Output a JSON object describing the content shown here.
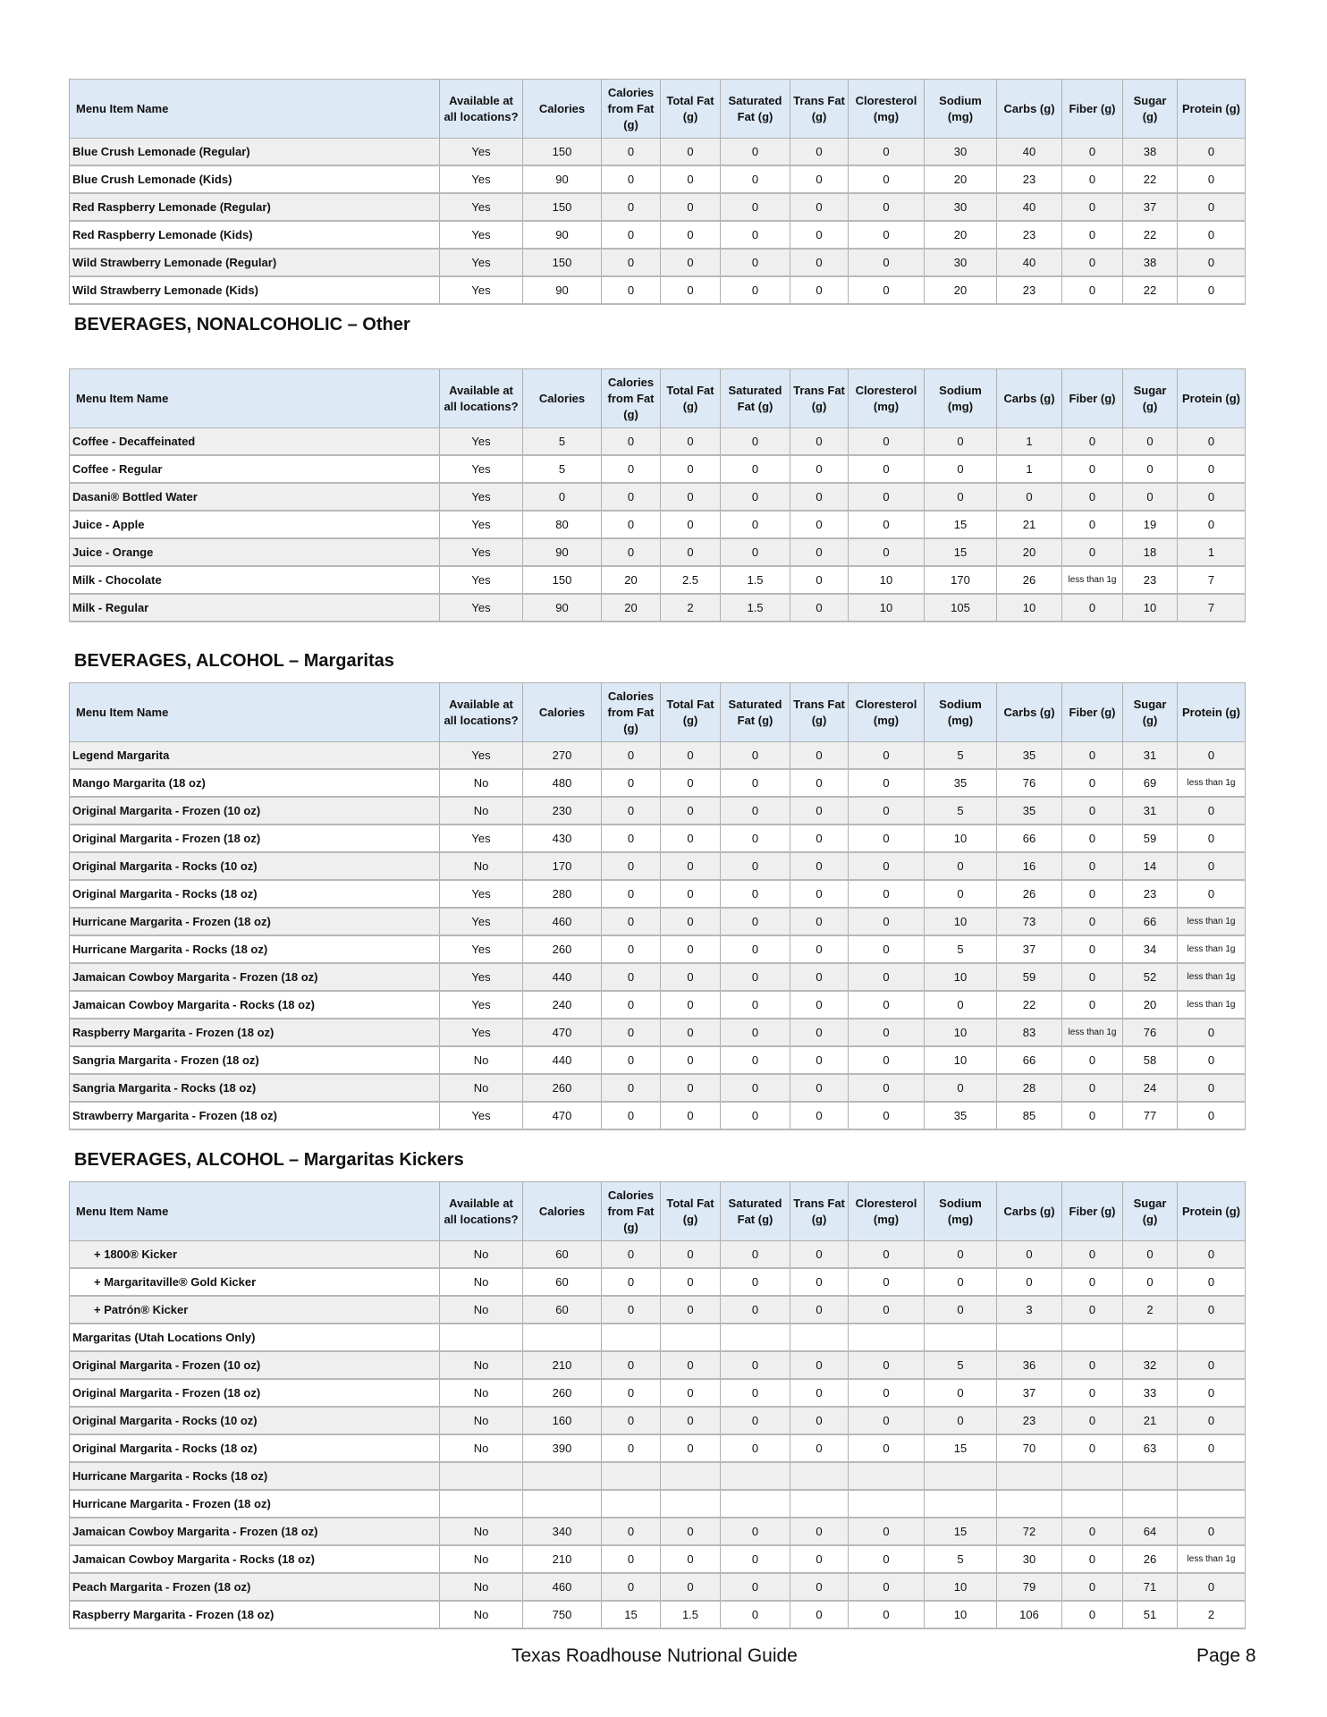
{
  "columns": [
    "Menu Item Name",
    "Available at all locations?",
    "Calories",
    "Calories from Fat (g)",
    "Total Fat (g)",
    "Saturated Fat (g)",
    "Trans Fat (g)",
    "Cloresterol (mg)",
    "Sodium (mg)",
    "Carbs (g)",
    "Fiber (g)",
    "Sugar (g)",
    "Protein (g)"
  ],
  "sections": [
    {
      "title": "",
      "rows": [
        [
          "Blue Crush Lemonade (Regular)",
          "Yes",
          "150",
          "0",
          "0",
          "0",
          "0",
          "0",
          "30",
          "40",
          "0",
          "38",
          "0"
        ],
        [
          "Blue Crush Lemonade (Kids)",
          "Yes",
          "90",
          "0",
          "0",
          "0",
          "0",
          "0",
          "20",
          "23",
          "0",
          "22",
          "0"
        ],
        [
          "Red Raspberry Lemonade (Regular)",
          "Yes",
          "150",
          "0",
          "0",
          "0",
          "0",
          "0",
          "30",
          "40",
          "0",
          "37",
          "0"
        ],
        [
          "Red Raspberry Lemonade (Kids)",
          "Yes",
          "90",
          "0",
          "0",
          "0",
          "0",
          "0",
          "20",
          "23",
          "0",
          "22",
          "0"
        ],
        [
          "Wild Strawberry Lemonade  (Regular)",
          "Yes",
          "150",
          "0",
          "0",
          "0",
          "0",
          "0",
          "30",
          "40",
          "0",
          "38",
          "0"
        ],
        [
          "Wild Strawberry Lemonade (Kids)",
          "Yes",
          "90",
          "0",
          "0",
          "0",
          "0",
          "0",
          "20",
          "23",
          "0",
          "22",
          "0"
        ]
      ]
    },
    {
      "title": "BEVERAGES, NONALCOHOLIC – Other",
      "rows": [
        [
          "Coffee - Decaffeinated",
          "Yes",
          "5",
          "0",
          "0",
          "0",
          "0",
          "0",
          "0",
          "1",
          "0",
          "0",
          "0"
        ],
        [
          "Coffee - Regular",
          "Yes",
          "5",
          "0",
          "0",
          "0",
          "0",
          "0",
          "0",
          "1",
          "0",
          "0",
          "0"
        ],
        [
          "Dasani® Bottled Water",
          "Yes",
          "0",
          "0",
          "0",
          "0",
          "0",
          "0",
          "0",
          "0",
          "0",
          "0",
          "0"
        ],
        [
          "Juice - Apple",
          "Yes",
          "80",
          "0",
          "0",
          "0",
          "0",
          "0",
          "15",
          "21",
          "0",
          "19",
          "0"
        ],
        [
          "Juice - Orange",
          "Yes",
          "90",
          "0",
          "0",
          "0",
          "0",
          "0",
          "15",
          "20",
          "0",
          "18",
          "1"
        ],
        [
          "Milk - Chocolate",
          "Yes",
          "150",
          "20",
          "2.5",
          "1.5",
          "0",
          "10",
          "170",
          "26",
          "less than 1g",
          "23",
          "7"
        ],
        [
          "Milk - Regular",
          "Yes",
          "90",
          "20",
          "2",
          "1.5",
          "0",
          "10",
          "105",
          "10",
          "0",
          "10",
          "7"
        ]
      ]
    },
    {
      "title": "BEVERAGES, ALCOHOL – Margaritas",
      "rows": [
        [
          "Legend Margarita",
          "Yes",
          "270",
          "0",
          "0",
          "0",
          "0",
          "0",
          "5",
          "35",
          "0",
          "31",
          "0"
        ],
        [
          "Mango Margarita (18 oz)",
          "No",
          "480",
          "0",
          "0",
          "0",
          "0",
          "0",
          "35",
          "76",
          "0",
          "69",
          "less than 1g"
        ],
        [
          "Original Margarita - Frozen (10 oz)",
          "No",
          "230",
          "0",
          "0",
          "0",
          "0",
          "0",
          "5",
          "35",
          "0",
          "31",
          "0"
        ],
        [
          "Original Margarita - Frozen (18 oz)",
          "Yes",
          "430",
          "0",
          "0",
          "0",
          "0",
          "0",
          "10",
          "66",
          "0",
          "59",
          "0"
        ],
        [
          "Original Margarita - Rocks (10 oz)",
          "No",
          "170",
          "0",
          "0",
          "0",
          "0",
          "0",
          "0",
          "16",
          "0",
          "14",
          "0"
        ],
        [
          "Original Margarita - Rocks (18 oz)",
          "Yes",
          "280",
          "0",
          "0",
          "0",
          "0",
          "0",
          "0",
          "26",
          "0",
          "23",
          "0"
        ],
        [
          "Hurricane Margarita - Frozen (18 oz)",
          "Yes",
          "460",
          "0",
          "0",
          "0",
          "0",
          "0",
          "10",
          "73",
          "0",
          "66",
          "less than 1g"
        ],
        [
          "Hurricane Margarita - Rocks (18 oz)",
          "Yes",
          "260",
          "0",
          "0",
          "0",
          "0",
          "0",
          "5",
          "37",
          "0",
          "34",
          "less than 1g"
        ],
        [
          "Jamaican Cowboy Margarita - Frozen (18 oz)",
          "Yes",
          "440",
          "0",
          "0",
          "0",
          "0",
          "0",
          "10",
          "59",
          "0",
          "52",
          "less than 1g"
        ],
        [
          "Jamaican Cowboy Margarita - Rocks (18 oz)",
          "Yes",
          "240",
          "0",
          "0",
          "0",
          "0",
          "0",
          "0",
          "22",
          "0",
          "20",
          "less than 1g"
        ],
        [
          "Raspberry Margarita - Frozen (18 oz)",
          "Yes",
          "470",
          "0",
          "0",
          "0",
          "0",
          "0",
          "10",
          "83",
          "less than 1g",
          "76",
          "0"
        ],
        [
          "Sangria Margarita - Frozen (18 oz)",
          "No",
          "440",
          "0",
          "0",
          "0",
          "0",
          "0",
          "10",
          "66",
          "0",
          "58",
          "0"
        ],
        [
          "Sangria Margarita - Rocks (18 oz)",
          "No",
          "260",
          "0",
          "0",
          "0",
          "0",
          "0",
          "0",
          "28",
          "0",
          "24",
          "0"
        ],
        [
          "Strawberry Margarita - Frozen (18 oz)",
          "Yes",
          "470",
          "0",
          "0",
          "0",
          "0",
          "0",
          "35",
          "85",
          "0",
          "77",
          "0"
        ]
      ]
    },
    {
      "title": "BEVERAGES, ALCOHOL – Margaritas Kickers",
      "rows": [
        [
          "+ 1800® Kicker",
          "No",
          "60",
          "0",
          "0",
          "0",
          "0",
          "0",
          "0",
          "0",
          "0",
          "0",
          "0"
        ],
        [
          "+ Margaritaville® Gold Kicker",
          "No",
          "60",
          "0",
          "0",
          "0",
          "0",
          "0",
          "0",
          "0",
          "0",
          "0",
          "0"
        ],
        [
          "+ Patrón® Kicker",
          "No",
          "60",
          "0",
          "0",
          "0",
          "0",
          "0",
          "0",
          "3",
          "0",
          "2",
          "0"
        ],
        [
          "Margaritas (Utah Locations Only)",
          "",
          "",
          "",
          "",
          "",
          "",
          "",
          "",
          "",
          "",
          "",
          ""
        ],
        [
          "Original Margarita - Frozen (10 oz)",
          "No",
          "210",
          "0",
          "0",
          "0",
          "0",
          "0",
          "5",
          "36",
          "0",
          "32",
          "0"
        ],
        [
          "Original Margarita - Frozen (18 oz)",
          "No",
          "260",
          "0",
          "0",
          "0",
          "0",
          "0",
          "0",
          "37",
          "0",
          "33",
          "0"
        ],
        [
          "Original Margarita - Rocks (10 oz)",
          "No",
          "160",
          "0",
          "0",
          "0",
          "0",
          "0",
          "0",
          "23",
          "0",
          "21",
          "0"
        ],
        [
          "Original Margarita - Rocks (18 oz)",
          "No",
          "390",
          "0",
          "0",
          "0",
          "0",
          "0",
          "15",
          "70",
          "0",
          "63",
          "0"
        ],
        [
          "Hurricane Margarita - Rocks (18 oz)",
          "",
          "",
          "",
          "",
          "",
          "",
          "",
          "",
          "",
          "",
          "",
          ""
        ],
        [
          "Hurricane Margarita - Frozen (18 oz)",
          "",
          "",
          "",
          "",
          "",
          "",
          "",
          "",
          "",
          "",
          "",
          ""
        ],
        [
          "Jamaican Cowboy Margarita - Frozen (18 oz)",
          "No",
          "340",
          "0",
          "0",
          "0",
          "0",
          "0",
          "15",
          "72",
          "0",
          "64",
          "0"
        ],
        [
          "Jamaican Cowboy Margarita - Rocks (18 oz)",
          "No",
          "210",
          "0",
          "0",
          "0",
          "0",
          "0",
          "5",
          "30",
          "0",
          "26",
          "less than 1g"
        ],
        [
          "Peach Margarita - Frozen (18 oz)",
          "No",
          "460",
          "0",
          "0",
          "0",
          "0",
          "0",
          "10",
          "79",
          "0",
          "71",
          "0"
        ],
        [
          "Raspberry Margarita - Frozen (18 oz)",
          "No",
          "750",
          "15",
          "1.5",
          "0",
          "0",
          "0",
          "10",
          "106",
          "0",
          "51",
          "2"
        ]
      ]
    }
  ],
  "footer": {
    "title": "Texas Roadhouse Nutrional Guide",
    "page": "Page 8"
  }
}
